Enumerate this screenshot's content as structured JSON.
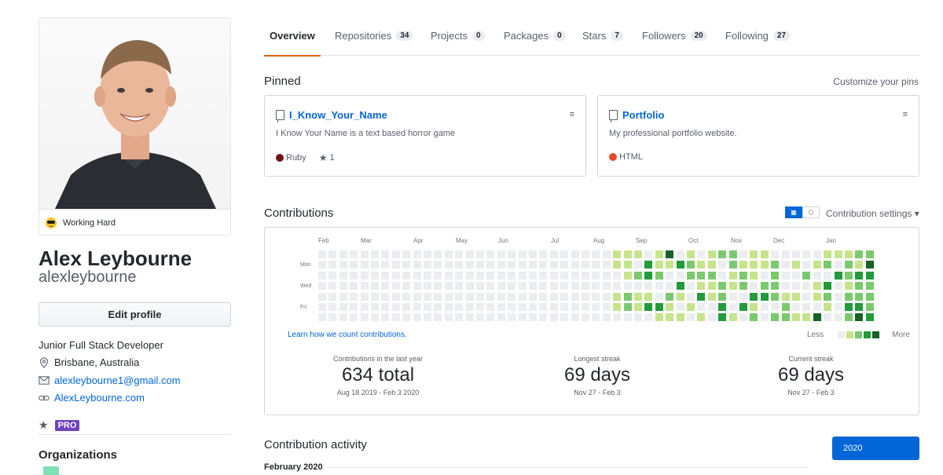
{
  "profile": {
    "status_text": "Working Hard",
    "full_name": "Alex Leybourne",
    "username": "alexleybourne",
    "edit_label": "Edit profile",
    "bio": "Junior Full Stack Developer",
    "location": "Brisbane, Australia",
    "email": "alexleybourne1@gmail.com",
    "website": "AlexLeybourne.com",
    "pro_label": "PRO",
    "organizations_title": "Organizations"
  },
  "tabs": [
    {
      "label": "Overview",
      "count": "",
      "selected": true
    },
    {
      "label": "Repositories",
      "count": "34"
    },
    {
      "label": "Projects",
      "count": "0"
    },
    {
      "label": "Packages",
      "count": "0"
    },
    {
      "label": "Stars",
      "count": "7"
    },
    {
      "label": "Followers",
      "count": "20"
    },
    {
      "label": "Following",
      "count": "27"
    }
  ],
  "pinned": {
    "title": "Pinned",
    "customize_label": "Customize your pins",
    "repos": [
      {
        "name": "I_Know_Your_Name",
        "description": "I Know Your Name is a text based horror game",
        "language": "Ruby",
        "language_color": "#701516",
        "stars": "1"
      },
      {
        "name": "Portfolio",
        "description": "My professional portfolio website.",
        "language": "HTML",
        "language_color": "#e34c26",
        "stars": ""
      }
    ]
  },
  "contributions": {
    "title": "Contributions",
    "settings_label": "Contribution settings ▾",
    "months": [
      "Feb",
      "Mar",
      "Apr",
      "May",
      "Jun",
      "Jul",
      "Aug",
      "Sep",
      "Oct",
      "Nov",
      "Dec",
      "Jan"
    ],
    "days": [
      "Mon",
      "Wed",
      "Fri"
    ],
    "learn_label": "Learn how we count contributions.",
    "legend_less": "Less",
    "legend_more": "More",
    "level_colors": [
      "#ebedf0",
      "#c6e48b",
      "#7bc96f",
      "#239a3b",
      "#196127"
    ],
    "stats": [
      {
        "label": "Contributions in the last year",
        "value": "634 total",
        "range": "Aug 18 2019 - Feb 3 2020"
      },
      {
        "label": "Longest streak",
        "value": "69 days",
        "range": "Nov 27 - Feb 3"
      },
      {
        "label": "Current streak",
        "value": "69 days",
        "range": "Nov 27 - Feb 3"
      }
    ]
  },
  "activity": {
    "title": "Contribution activity",
    "year": "2020",
    "month_heading": "February 2020"
  }
}
